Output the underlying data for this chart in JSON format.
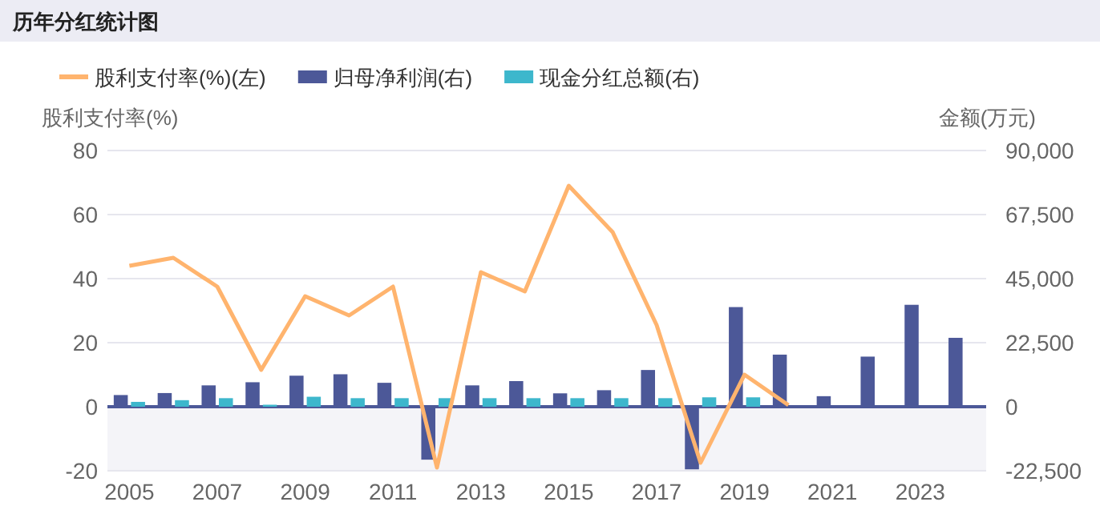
{
  "chart_data": {
    "type": "bar",
    "title": "历年分红统计图",
    "ylabel": "股利支付率(%)",
    "y2label": "金额(万元)",
    "categories": [
      "2005",
      null,
      "2007",
      null,
      "2009",
      null,
      "2011",
      null,
      "2013",
      null,
      "2015",
      null,
      "2017",
      null,
      "2019",
      null,
      "2021",
      null,
      "2023",
      null
    ],
    "series": [
      {
        "name": "股利支付率(%)(左)",
        "type": "line",
        "color": "#ffb46e",
        "values": [
          44,
          46.5,
          37.5,
          11.5,
          34.5,
          28.5,
          37.5,
          -19,
          42,
          36,
          69,
          54.5,
          25.5,
          -17.5,
          10,
          0.5,
          null,
          null,
          null,
          null
        ]
      },
      {
        "name": "归母净利润(右)",
        "axis": "y2",
        "color": "#4c5898",
        "values": [
          4100,
          4800,
          7500,
          8600,
          10900,
          11400,
          8400,
          -18600,
          7500,
          9000,
          4700,
          5800,
          12900,
          -22000,
          35000,
          18300,
          3700,
          17600,
          35800,
          24200
        ]
      },
      {
        "name": "现金分红总额(右)",
        "axis": "y2",
        "color": "#3db7cc",
        "values": [
          1700,
          2300,
          3000,
          700,
          3500,
          3000,
          3000,
          3000,
          3000,
          3000,
          3000,
          3000,
          3000,
          3300,
          3300,
          null,
          null,
          null,
          null,
          null
        ]
      }
    ],
    "ylim": [
      -20,
      80
    ],
    "yticks": [
      -20,
      0,
      20,
      40,
      60,
      80
    ],
    "y2lim": [
      -22500,
      90000
    ],
    "y2ticks": [
      {
        "value": -22500,
        "label": "-22,500"
      },
      0,
      {
        "value": 22500,
        "label": "22,500"
      },
      {
        "value": 45000,
        "label": "45,000"
      },
      {
        "value": 67500,
        "label": "67,500"
      },
      {
        "value": 90000,
        "label": "90,000"
      }
    ],
    "ref_lines": [
      {
        "axis": "y",
        "value": 0,
        "color": "#4c5898"
      }
    ],
    "bands": [
      {
        "axis": "y",
        "from": -20,
        "to": 0,
        "color": "#f4f4f8"
      }
    ],
    "grid": "y",
    "legend": "top left"
  }
}
